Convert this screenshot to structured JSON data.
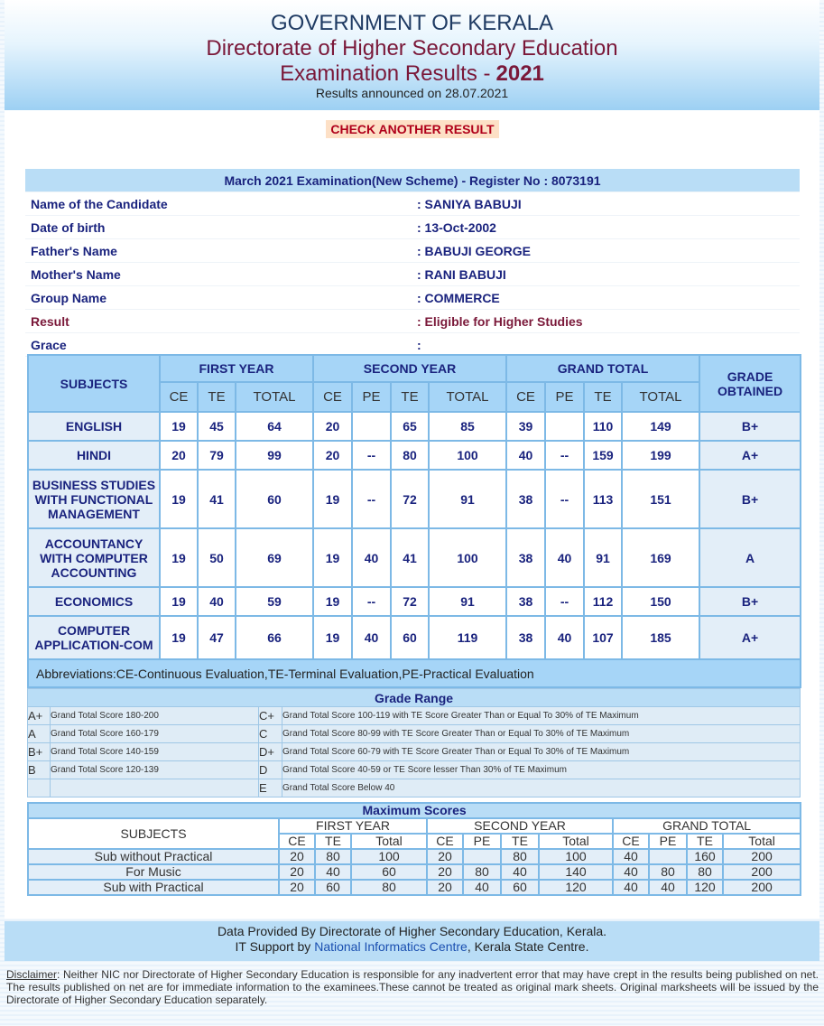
{
  "header": {
    "title": "GOVERNMENT OF KERALA",
    "subtitle": "Directorate of Higher Secondary Education",
    "exam": "Examination Results -",
    "year": "2021",
    "announced": "Results announced on 28.07.2021"
  },
  "check_button": "CHECK ANOTHER RESULT",
  "candidate": {
    "heading": "March 2021 Examination(New Scheme) - Register No : 8073191",
    "rows": [
      [
        "Name of the Candidate",
        ": SANIYA BABUJI"
      ],
      [
        "Date of birth",
        ": 13-Oct-2002"
      ],
      [
        "Father's Name",
        ": BABUJI GEORGE"
      ],
      [
        "Mother's Name",
        ": RANI BABUJI"
      ],
      [
        "Group Name",
        ": COMMERCE"
      ],
      [
        "Result",
        ": Eligible for Higher Studies"
      ],
      [
        "Grace",
        ":"
      ]
    ]
  },
  "marks": {
    "headers": {
      "subjects": "SUBJECTS",
      "first_year": "FIRST YEAR",
      "second_year": "SECOND YEAR",
      "grand_total": "GRAND TOTAL",
      "grade": "GRADE OBTAINED",
      "first_year_cols": [
        "CE",
        "TE",
        "TOTAL"
      ],
      "second_year_cols": [
        "CE",
        "PE",
        "TE",
        "TOTAL"
      ],
      "grand_total_cols": [
        "CE",
        "PE",
        "TE",
        "TOTAL"
      ]
    },
    "rows": [
      [
        "ENGLISH",
        19,
        45,
        64,
        20,
        null,
        65,
        85,
        39,
        null,
        110,
        149,
        "B+"
      ],
      [
        "HINDI",
        20,
        79,
        99,
        20,
        "--",
        80,
        100,
        40,
        "--",
        159,
        199,
        "A+"
      ],
      [
        "BUSINESS STUDIES WITH FUNCTIONAL MANAGEMENT",
        19,
        41,
        60,
        19,
        "--",
        72,
        91,
        38,
        "--",
        113,
        151,
        "B+"
      ],
      [
        "ACCOUNTANCY WITH COMPUTER ACCOUNTING",
        19,
        50,
        69,
        19,
        40,
        41,
        100,
        38,
        40,
        91,
        169,
        "A"
      ],
      [
        "ECONOMICS",
        19,
        40,
        59,
        19,
        "--",
        72,
        91,
        38,
        "--",
        112,
        150,
        "B+"
      ],
      [
        "COMPUTER APPLICATION-COM",
        19,
        47,
        66,
        19,
        40,
        60,
        119,
        38,
        40,
        107,
        185,
        "A+"
      ]
    ],
    "abbreviations": "Abbreviations:CE-Continuous Evaluation,TE-Terminal Evaluation,PE-Practical Evaluation"
  },
  "grade_range": {
    "title": "Grade Range",
    "rows": [
      [
        "A+",
        "Grand Total Score 180-200",
        "C+",
        "Grand Total Score 100-119 with TE Score Greater Than or Equal To 30% of TE Maximum"
      ],
      [
        "A",
        "Grand Total Score 160-179",
        "C",
        "Grand Total Score 80-99 with TE Score Greater Than or Equal To 30% of TE Maximum"
      ],
      [
        "B+",
        "Grand Total Score 140-159",
        "D+",
        "Grand Total Score 60-79 with TE Score Greater Than or Equal To 30% of TE Maximum"
      ],
      [
        "B",
        "Grand Total Score 120-139",
        "D",
        "Grand Total Score 40-59 or TE Score lesser Than 30% of TE Maximum"
      ],
      [
        null,
        null,
        "E",
        "Grand Total Score Below 40"
      ]
    ]
  },
  "max_scores": {
    "title": "Maximum Scores",
    "headers": {
      "subjects": "SUBJECTS",
      "first_year": "FIRST YEAR",
      "second_year": "SECOND YEAR",
      "grand_total": "GRAND TOTAL",
      "first_year_cols": [
        "CE",
        "TE",
        "Total"
      ],
      "second_year_cols": [
        "CE",
        "PE",
        "TE",
        "Total"
      ],
      "grand_total_cols": [
        "CE",
        "PE",
        "TE",
        "Total"
      ]
    },
    "rows": [
      [
        "Sub without Practical",
        20,
        80,
        100,
        20,
        null,
        80,
        100,
        40,
        null,
        160,
        200
      ],
      [
        "For Music",
        20,
        40,
        60,
        20,
        80,
        40,
        140,
        40,
        80,
        80,
        200
      ],
      [
        "Sub with Practical",
        20,
        60,
        80,
        20,
        40,
        60,
        120,
        40,
        40,
        120,
        200
      ]
    ]
  },
  "footer": {
    "line1": "Data Provided By Directorate of Higher Secondary Education, Kerala.",
    "line2_prefix": "IT Support by",
    "link": "National Informatics Centre",
    "line2_suffix": ", Kerala State Centre.",
    "disclaimer_label": "Disclaimer",
    "disclaimer_text": ": Neither NIC nor Directorate of Higher Secondary Education is responsible for any inadvertent error that may have crept in the results being published on net. The results published on net are for immediate information to the examinees.These cannot be treated as original mark sheets. Original marksheets will be issued by the Directorate of Higher Secondary Education separately."
  }
}
